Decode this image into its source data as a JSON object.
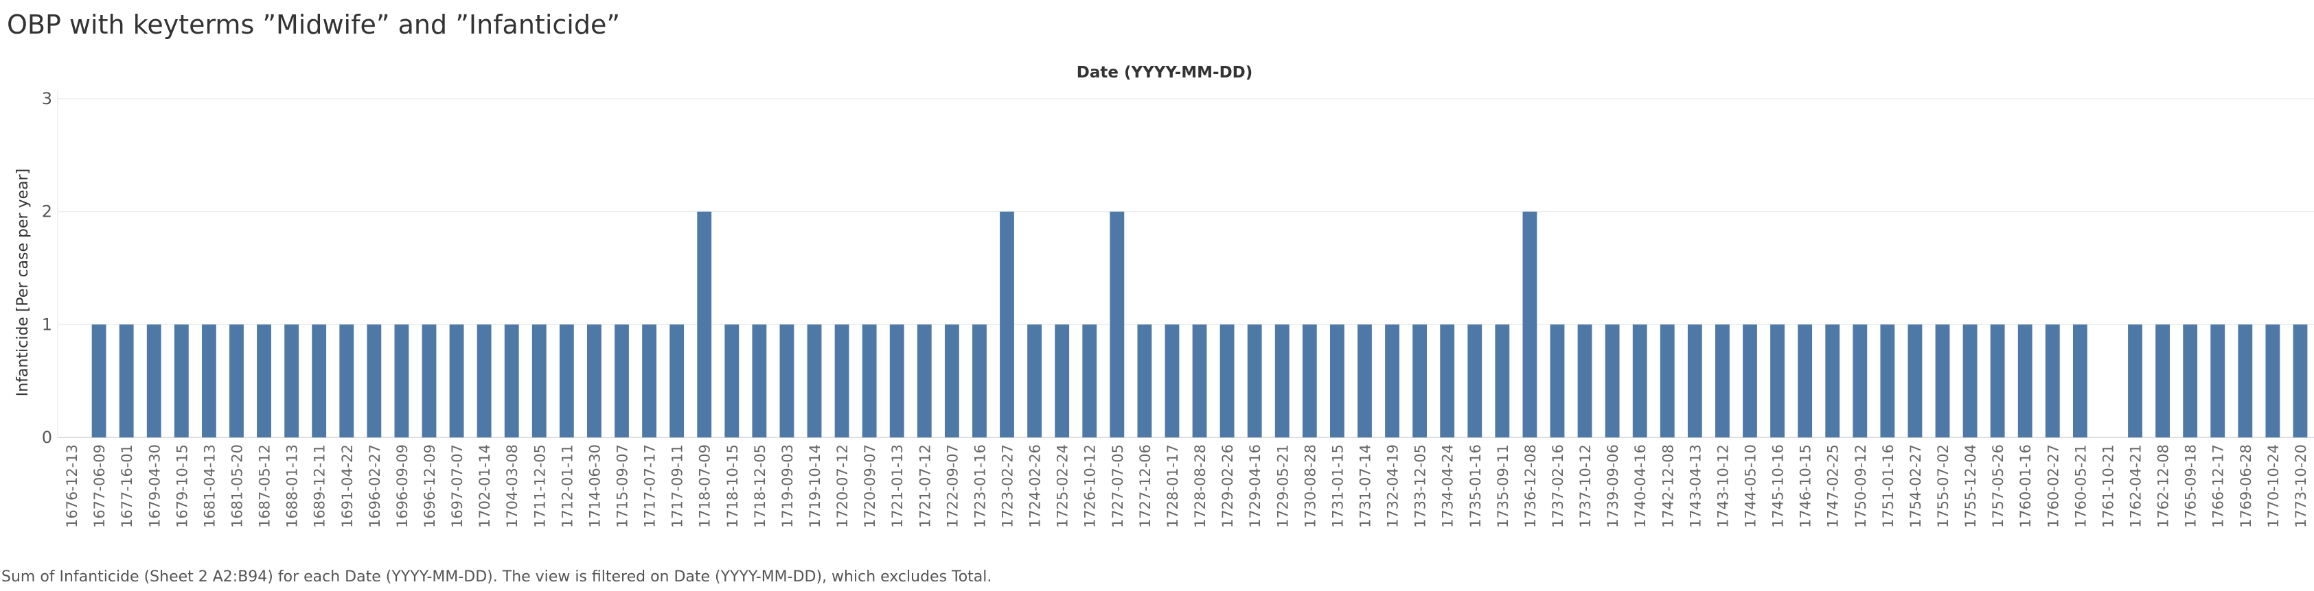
{
  "title": "OBP with keyterms ”Midwife” and ”Infanticide”",
  "footer": "Sum of Infanticide (Sheet 2 A2:B94) for each Date (YYYY-MM-DD). The view is filtered on Date (YYYY-MM-DD), which excludes Total.",
  "colors": {
    "bar": "#4e79a7",
    "grid": "#eeeeee",
    "axis": "#dddddd",
    "text": "#555555"
  },
  "chart_data": {
    "type": "bar",
    "title": "",
    "xlabel": "Date (YYYY-MM-DD)",
    "ylabel": "Infanticide [Per case per year]",
    "ylim": [
      0,
      3
    ],
    "yticks": [
      0,
      1,
      2,
      3
    ],
    "grid": true,
    "categories": [
      "1676-12-13",
      "1677-06-09",
      "1677-16-01",
      "1679-04-30",
      "1679-10-15",
      "1681-04-13",
      "1681-05-20",
      "1687-05-12",
      "1688-01-13",
      "1689-12-11",
      "1691-04-22",
      "1696-02-27",
      "1696-09-09",
      "1696-12-09",
      "1697-07-07",
      "1702-01-14",
      "1704-03-08",
      "1711-12-05",
      "1712-01-11",
      "1714-06-30",
      "1715-09-07",
      "1717-07-17",
      "1717-09-11",
      "1718-07-09",
      "1718-10-15",
      "1718-12-05",
      "1719-09-03",
      "1719-10-14",
      "1720-07-12",
      "1720-09-07",
      "1721-01-13",
      "1721-07-12",
      "1722-09-07",
      "1723-01-16",
      "1723-02-27",
      "1724-02-26",
      "1725-02-24",
      "1726-10-12",
      "1727-07-05",
      "1727-12-06",
      "1728-01-17",
      "1728-08-28",
      "1729-02-26",
      "1729-04-16",
      "1729-05-21",
      "1730-08-28",
      "1731-01-15",
      "1731-07-14",
      "1732-04-19",
      "1733-12-05",
      "1734-04-24",
      "1735-01-16",
      "1735-09-11",
      "1736-12-08",
      "1737-02-16",
      "1737-10-12",
      "1739-09-06",
      "1740-04-16",
      "1742-12-08",
      "1743-04-13",
      "1743-10-12",
      "1744-05-10",
      "1745-10-16",
      "1746-10-15",
      "1747-02-25",
      "1750-09-12",
      "1751-01-16",
      "1754-02-27",
      "1755-07-02",
      "1755-12-04",
      "1757-05-26",
      "1760-01-16",
      "1760-02-27",
      "1760-05-21",
      "1761-10-21",
      "1762-04-21",
      "1762-12-08",
      "1765-09-18",
      "1766-12-17",
      "1769-06-28",
      "1770-10-24",
      "1773-10-20"
    ],
    "values": [
      0,
      1,
      1,
      1,
      1,
      1,
      1,
      1,
      1,
      1,
      1,
      1,
      1,
      1,
      1,
      1,
      1,
      1,
      1,
      1,
      1,
      1,
      1,
      2,
      1,
      1,
      1,
      1,
      1,
      1,
      1,
      1,
      1,
      1,
      2,
      1,
      1,
      1,
      2,
      1,
      1,
      1,
      1,
      1,
      1,
      1,
      1,
      1,
      1,
      1,
      1,
      1,
      1,
      2,
      1,
      1,
      1,
      1,
      1,
      1,
      1,
      1,
      1,
      1,
      1,
      1,
      1,
      1,
      1,
      1,
      1,
      1,
      1,
      1,
      0,
      1,
      1,
      1,
      1,
      1,
      1,
      1
    ]
  }
}
